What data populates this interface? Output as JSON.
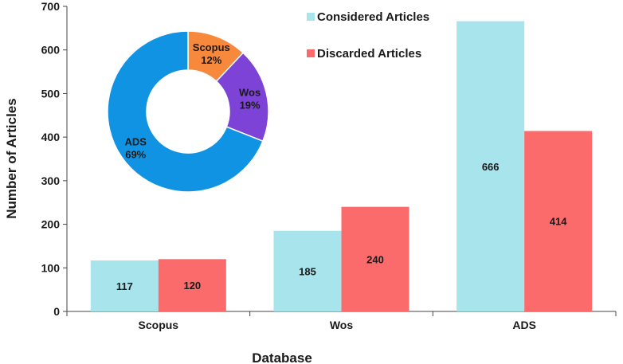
{
  "chart_data": [
    {
      "type": "bar",
      "categories": [
        "Scopus",
        "Wos",
        "ADS"
      ],
      "series": [
        {
          "name": "Considered Articles",
          "color": "#a8e4ec",
          "values": [
            117,
            185,
            666
          ]
        },
        {
          "name": "Discarded Articles",
          "color": "#fb6b6b",
          "values": [
            120,
            240,
            414
          ]
        }
      ],
      "xlabel": "Database",
      "ylabel": "Number of Articles",
      "ylim": [
        0,
        700
      ],
      "yticks": [
        0,
        100,
        200,
        300,
        400,
        500,
        600,
        700
      ],
      "grid": false,
      "legend": "top-right"
    },
    {
      "type": "pie",
      "style": "donut",
      "slices": [
        {
          "label": "Scopus",
          "value": 12,
          "value_text": "12%",
          "color": "#f7893c"
        },
        {
          "label": "Wos",
          "value": 19,
          "value_text": "19%",
          "color": "#7d42d6"
        },
        {
          "label": "ADS",
          "value": 69,
          "value_text": "69%",
          "color": "#1193e4"
        }
      ],
      "legend": "none"
    }
  ]
}
